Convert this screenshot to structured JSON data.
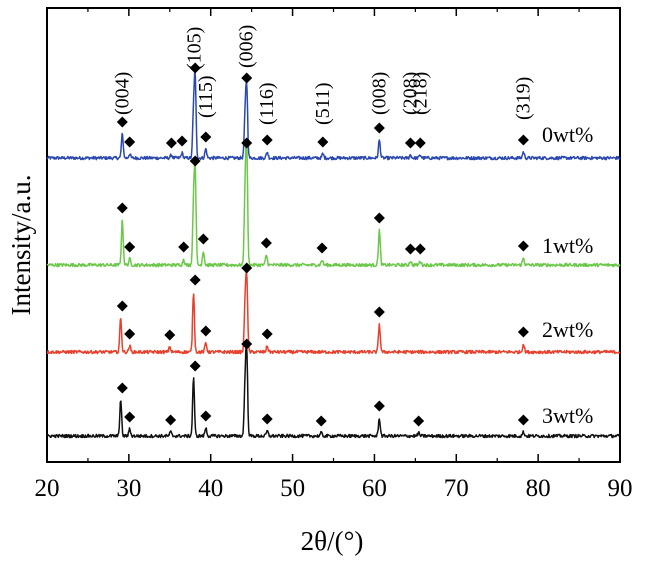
{
  "chart_data": {
    "type": "line",
    "xlabel": "2θ/(°)",
    "ylabel": "Intensity/a.u.",
    "xlim": [
      20,
      90
    ],
    "x_ticks": [
      "20",
      "30",
      "40",
      "50",
      "60",
      "70",
      "80",
      "90"
    ],
    "y_ticks_shown": false,
    "grid": false,
    "legend": "inline labels at right of each trace",
    "reflections": [
      {
        "label": "(004)",
        "x": 29.2
      },
      {
        "label": "(105)",
        "x": 38.0
      },
      {
        "label": "(115)",
        "x": 39.4
      },
      {
        "label": "(006)",
        "x": 44.4
      },
      {
        "label": "(116)",
        "x": 46.9
      },
      {
        "label": "(511)",
        "x": 53.7
      },
      {
        "label": "(008)",
        "x": 60.6
      },
      {
        "label": "(208)",
        "x": 64.4
      },
      {
        "label": "(218)",
        "x": 65.6
      },
      {
        "label": "(319)",
        "x": 78.2
      }
    ],
    "series": [
      {
        "name": "0wt%",
        "color": "#2a48b0",
        "peaks": [
          {
            "x": 29.2,
            "h": 24
          },
          {
            "x": 30.1,
            "h": 4
          },
          {
            "x": 35.2,
            "h": 3
          },
          {
            "x": 36.5,
            "h": 5
          },
          {
            "x": 37.9,
            "h": 42
          },
          {
            "x": 38.1,
            "h": 78
          },
          {
            "x": 39.4,
            "h": 9
          },
          {
            "x": 44.2,
            "h": 40
          },
          {
            "x": 44.4,
            "h": 68
          },
          {
            "x": 46.9,
            "h": 6
          },
          {
            "x": 53.7,
            "h": 4
          },
          {
            "x": 60.6,
            "h": 18
          },
          {
            "x": 64.4,
            "h": 3
          },
          {
            "x": 65.6,
            "h": 3
          },
          {
            "x": 78.2,
            "h": 6
          }
        ],
        "markers": [
          29.2,
          30.1,
          35.2,
          36.5,
          38.1,
          39.4,
          44.4,
          46.9,
          53.7,
          60.6,
          64.4,
          65.6,
          78.2
        ]
      },
      {
        "name": "1wt%",
        "color": "#6cc84a",
        "peaks": [
          {
            "x": 29.2,
            "h": 45
          },
          {
            "x": 30.1,
            "h": 6
          },
          {
            "x": 36.7,
            "h": 6
          },
          {
            "x": 37.9,
            "h": 56
          },
          {
            "x": 38.1,
            "h": 92
          },
          {
            "x": 39.1,
            "h": 14
          },
          {
            "x": 44.2,
            "h": 70
          },
          {
            "x": 44.4,
            "h": 110
          },
          {
            "x": 46.8,
            "h": 10
          },
          {
            "x": 53.6,
            "h": 5
          },
          {
            "x": 60.6,
            "h": 35
          },
          {
            "x": 64.4,
            "h": 4
          },
          {
            "x": 65.6,
            "h": 4
          },
          {
            "x": 78.2,
            "h": 7
          }
        ],
        "markers": [
          29.2,
          30.1,
          36.7,
          38.1,
          39.1,
          44.4,
          46.8,
          53.6,
          60.6,
          64.4,
          65.6,
          78.2
        ]
      },
      {
        "name": "2wt%",
        "color": "#e8402c",
        "peaks": [
          {
            "x": 29.0,
            "h": 34
          },
          {
            "x": 30.1,
            "h": 6
          },
          {
            "x": 35.0,
            "h": 5
          },
          {
            "x": 37.9,
            "h": 60
          },
          {
            "x": 39.4,
            "h": 9
          },
          {
            "x": 44.2,
            "h": 45
          },
          {
            "x": 44.4,
            "h": 72
          },
          {
            "x": 46.9,
            "h": 6
          },
          {
            "x": 60.6,
            "h": 28
          },
          {
            "x": 78.2,
            "h": 8
          }
        ],
        "markers": [
          29.2,
          30.1,
          35.0,
          38.1,
          39.4,
          44.4,
          46.9,
          60.6,
          78.2
        ]
      },
      {
        "name": "3wt%",
        "color": "#111111",
        "peaks": [
          {
            "x": 29.0,
            "h": 36
          },
          {
            "x": 30.1,
            "h": 7
          },
          {
            "x": 35.1,
            "h": 4
          },
          {
            "x": 37.9,
            "h": 58
          },
          {
            "x": 39.4,
            "h": 8
          },
          {
            "x": 44.2,
            "h": 50
          },
          {
            "x": 44.4,
            "h": 80
          },
          {
            "x": 46.9,
            "h": 5
          },
          {
            "x": 53.5,
            "h": 3
          },
          {
            "x": 60.6,
            "h": 18
          },
          {
            "x": 65.4,
            "h": 3
          },
          {
            "x": 78.2,
            "h": 4
          }
        ],
        "markers": [
          29.2,
          30.1,
          35.1,
          38.1,
          39.4,
          44.4,
          46.9,
          53.5,
          60.6,
          65.4,
          78.2
        ]
      }
    ]
  }
}
